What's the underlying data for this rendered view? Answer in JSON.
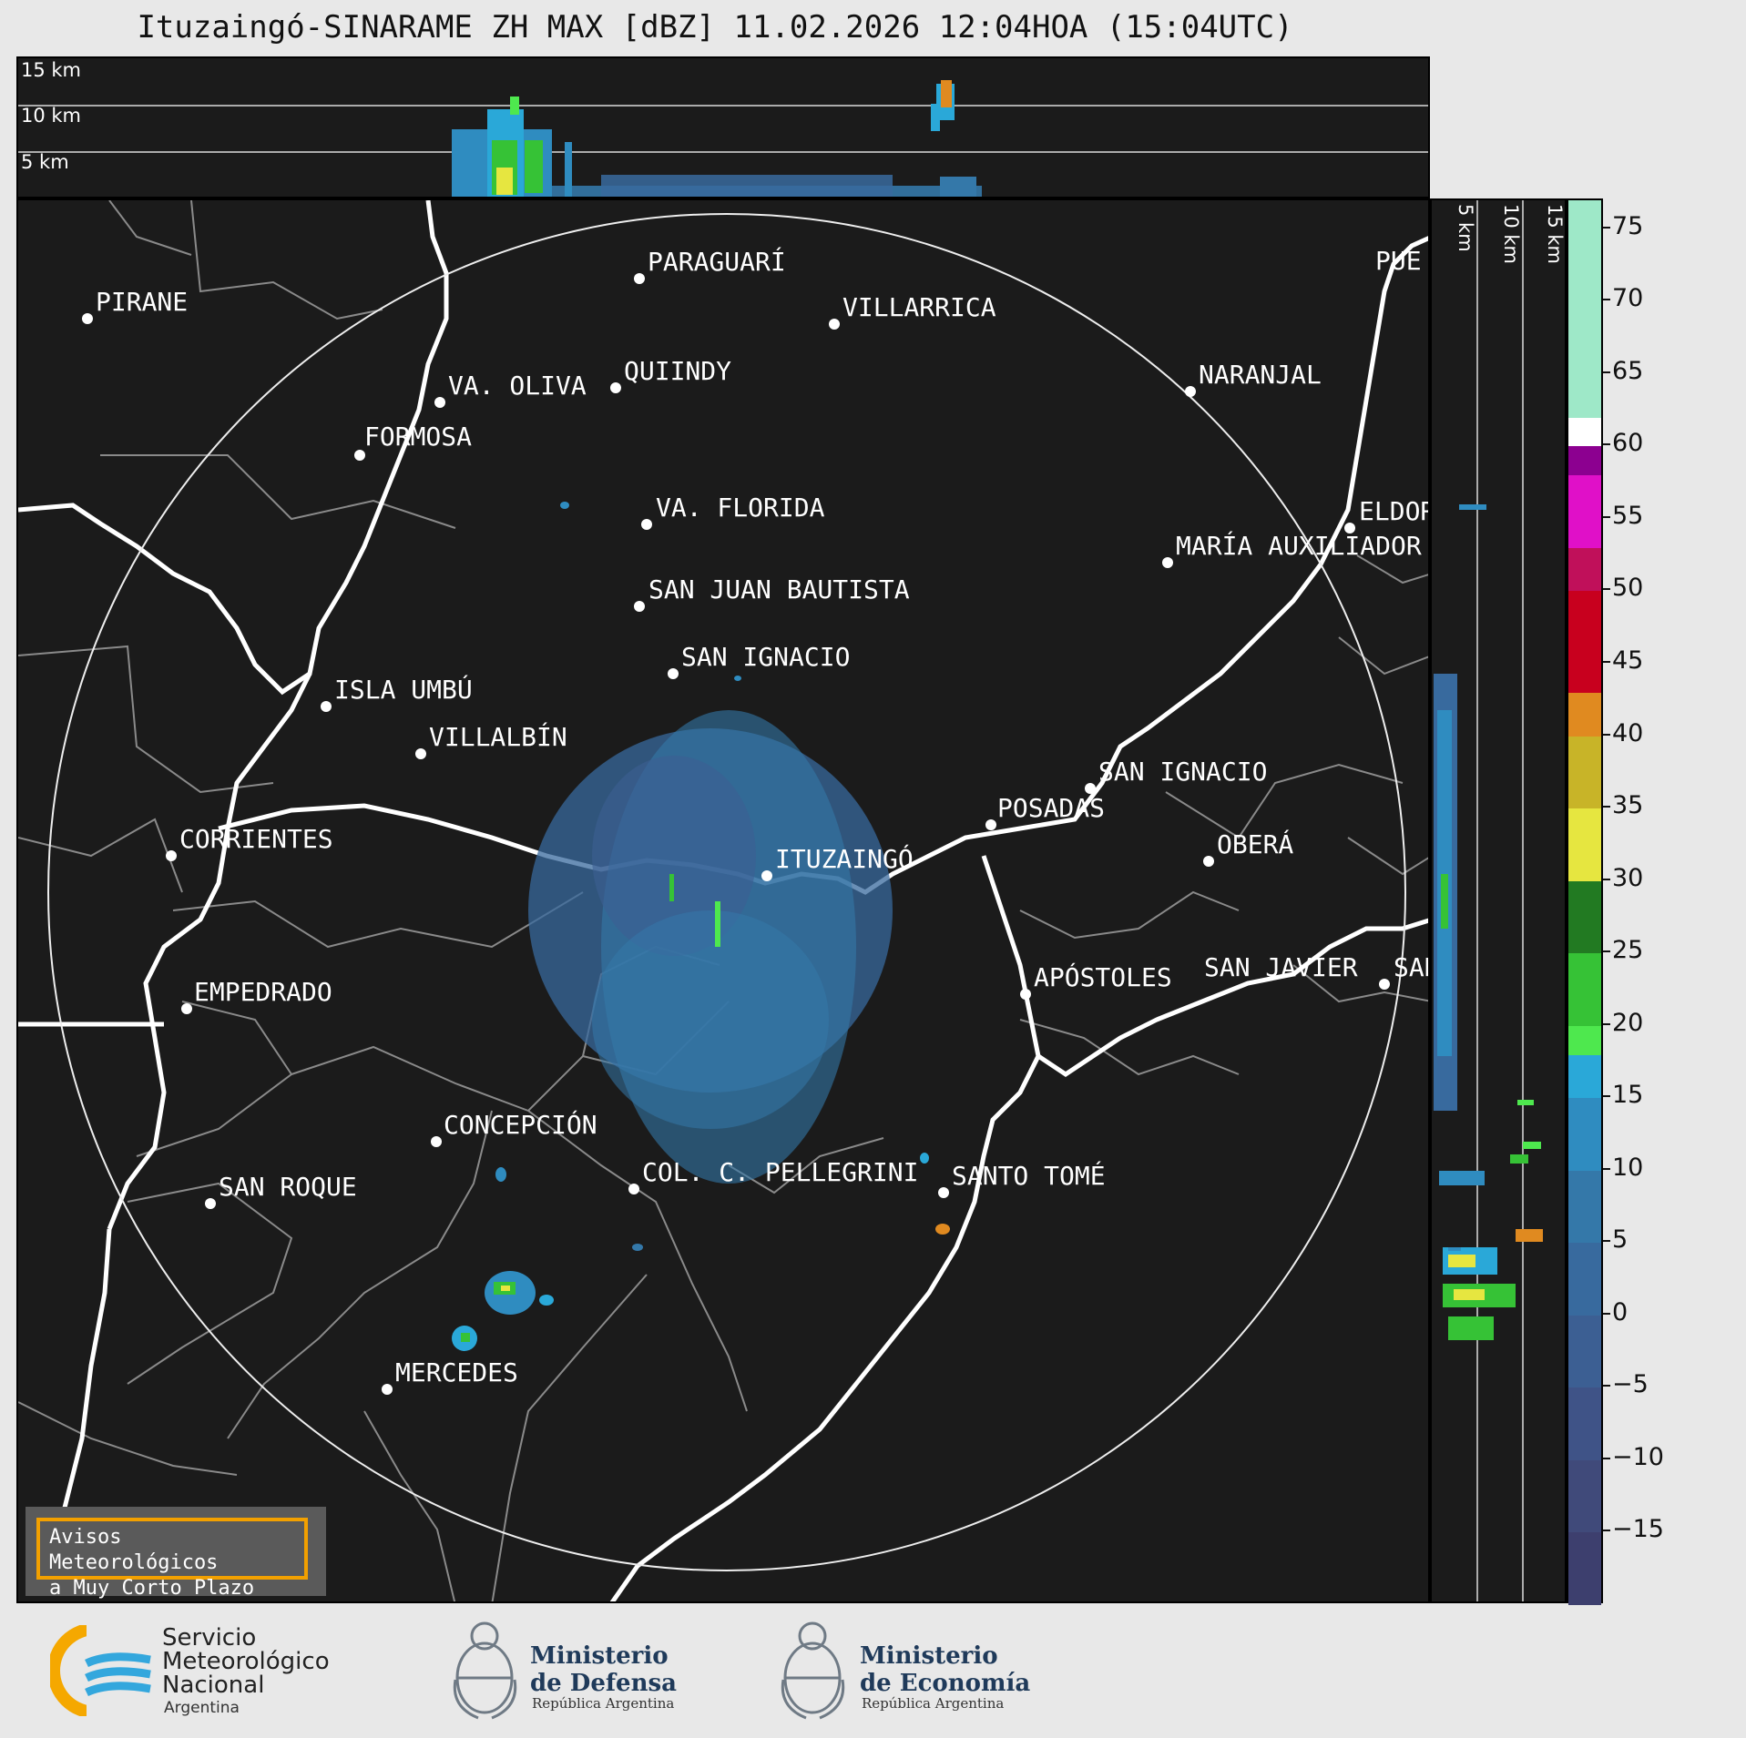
{
  "title": "Ituzaingó-SINARAME ZH MAX [dBZ] 11.02.2026 12:04HOA (15:04UTC)",
  "height_labels": [
    "15 km",
    "10 km",
    "5 km"
  ],
  "cities": [
    {
      "name": "PARAGUARÍ"
    },
    {
      "name": "VILLARRICA"
    },
    {
      "name": "PIRANE"
    },
    {
      "name": "QUIINDY"
    },
    {
      "name": "VA. OLIVA"
    },
    {
      "name": "NARANJAL"
    },
    {
      "name": "FORMOSA"
    },
    {
      "name": "VA. FLORIDA"
    },
    {
      "name": "ELDOR"
    },
    {
      "name": "MARÍA AUXILIADOR"
    },
    {
      "name": "SAN JUAN BAUTISTA"
    },
    {
      "name": "SAN IGNACIO"
    },
    {
      "name": "ISLA UMBÚ"
    },
    {
      "name": "VILLALBÍN"
    },
    {
      "name": "SAN IGNACIO"
    },
    {
      "name": "POSADAS"
    },
    {
      "name": "CORRIENTES"
    },
    {
      "name": "ITUZAINGÓ"
    },
    {
      "name": "OBERÁ"
    },
    {
      "name": "APÓSTOLES"
    },
    {
      "name": "SAN JAVIER"
    },
    {
      "name": "SAN"
    },
    {
      "name": "EMPEDRADO"
    },
    {
      "name": "CONCEPCIÓN"
    },
    {
      "name": "COL. C. PELLEGRINI"
    },
    {
      "name": "SANTO TOMÉ"
    },
    {
      "name": "SAN ROQUE"
    },
    {
      "name": "MERCEDES"
    },
    {
      "name": "PUE"
    }
  ],
  "colorbar": {
    "ticks": [
      "75",
      "70",
      "65",
      "60",
      "55",
      "50",
      "45",
      "40",
      "35",
      "30",
      "25",
      "20",
      "15",
      "10",
      "5",
      "0",
      "−5",
      "−10",
      "−15"
    ],
    "range": [
      -20,
      77
    ],
    "bands": [
      {
        "from": -20,
        "to": -15,
        "color": "#3d3f6e"
      },
      {
        "from": -15,
        "to": -10,
        "color": "#404a7a"
      },
      {
        "from": -10,
        "to": -5,
        "color": "#3f5387"
      },
      {
        "from": -5,
        "to": 0,
        "color": "#3c5f93"
      },
      {
        "from": 0,
        "to": 5,
        "color": "#386a9e"
      },
      {
        "from": 5,
        "to": 10,
        "color": "#3478a9"
      },
      {
        "from": 10,
        "to": 15,
        "color": "#2f8cc0"
      },
      {
        "from": 15,
        "to": 18,
        "color": "#2aa8d8"
      },
      {
        "from": 18,
        "to": 20,
        "color": "#4ee84e"
      },
      {
        "from": 20,
        "to": 25,
        "color": "#36c236"
      },
      {
        "from": 25,
        "to": 30,
        "color": "#227a22"
      },
      {
        "from": 30,
        "to": 35,
        "color": "#e6e640"
      },
      {
        "from": 35,
        "to": 40,
        "color": "#c8b428"
      },
      {
        "from": 40,
        "to": 43,
        "color": "#e08a20"
      },
      {
        "from": 43,
        "to": 50,
        "color": "#c8001e"
      },
      {
        "from": 50,
        "to": 53,
        "color": "#c0105a"
      },
      {
        "from": 53,
        "to": 58,
        "color": "#e010c8"
      },
      {
        "from": 58,
        "to": 60,
        "color": "#8c0090"
      },
      {
        "from": 60,
        "to": 62,
        "color": "#ffffff"
      },
      {
        "from": 62,
        "to": 77,
        "color": "#9ee8c8"
      }
    ]
  },
  "warning": {
    "line1": "Avisos Meteorológicos",
    "line2": "a Muy Corto Plazo"
  },
  "logos": {
    "smn": {
      "line1": "Servicio",
      "line2": "Meteorológico",
      "line3": "Nacional",
      "line4": "Argentina"
    },
    "defensa": {
      "line1": "Ministerio",
      "line2": "de Defensa",
      "line3": "República Argentina"
    },
    "economia": {
      "line1": "Ministerio",
      "line2": "de Economía",
      "line3": "República Argentina"
    }
  }
}
